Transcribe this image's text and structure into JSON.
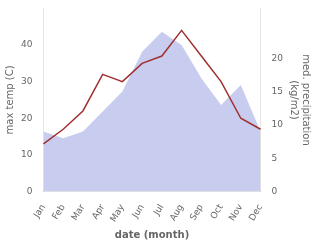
{
  "chart_data": {
    "type": "line",
    "categories": [
      "Jan",
      "Feb",
      "Mar",
      "Apr",
      "May",
      "Jun",
      "Jul",
      "Aug",
      "Sep",
      "Oct",
      "Nov",
      "Dec"
    ],
    "series": [
      {
        "type": "area",
        "color": "#b0b8e8",
        "axis": "y2",
        "values": [
          9,
          8,
          9,
          12,
          15,
          21,
          24,
          22,
          17,
          13,
          16,
          9
        ]
      },
      {
        "type": "line",
        "color": "#a03030",
        "values": [
          13,
          17,
          22,
          32,
          30,
          35,
          37,
          44,
          37,
          30,
          20,
          17
        ]
      }
    ],
    "x_label": "date (month)",
    "y_label": "max temp (C)",
    "y2_label": "med. precipitation\n(kg/m2)",
    "ylim": [
      0,
      50
    ],
    "yticks": [
      0,
      10,
      20,
      30,
      40
    ],
    "y2lim": [
      0,
      27.5
    ],
    "y2ticks": [
      0,
      5,
      10,
      15,
      20
    ],
    "grid": false
  }
}
